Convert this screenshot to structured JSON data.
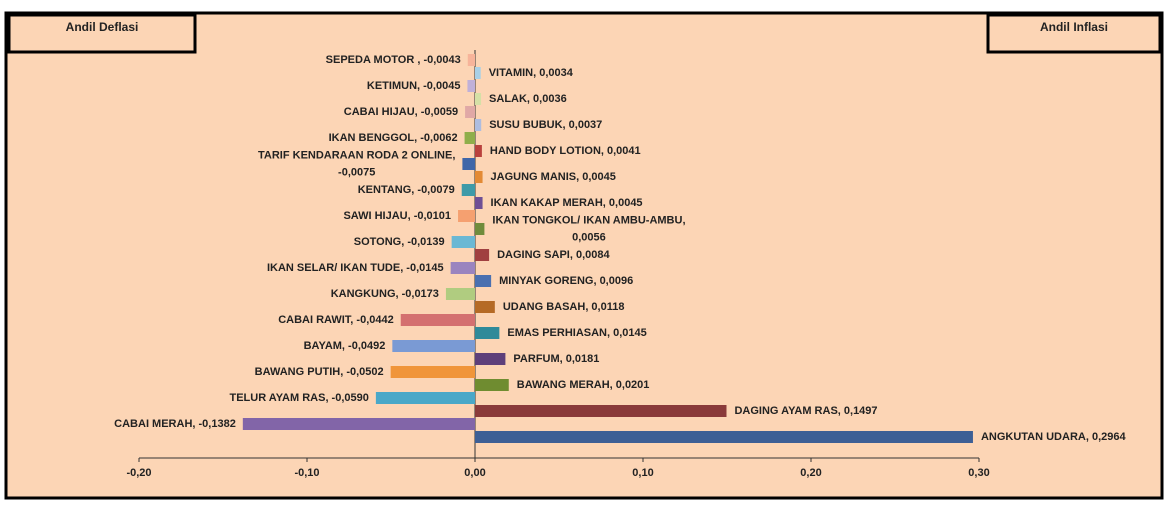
{
  "chart_data": {
    "type": "bar",
    "orientation": "horizontal",
    "annotations": [
      "Andil Deflasi",
      "Andil Inflasi"
    ],
    "value_labels": [
      "SEPEDA MOTOR , -0,0043",
      "VITAMIN, 0,0034",
      "KETIMUN, -0,0045",
      "SALAK, 0,0036",
      "CABAI HIJAU, -0,0059",
      "SUSU BUBUK, 0,0037",
      "IKAN BENGGOL, -0,0062",
      "HAND BODY LOTION, 0,0041",
      [
        "TARIF KENDARAAN RODA 2 ONLINE,",
        "-0,0075"
      ],
      "JAGUNG MANIS, 0,0045",
      "KENTANG, -0,0079",
      "IKAN KAKAP MERAH, 0,0045",
      "SAWI HIJAU, -0,0101",
      [
        "IKAN TONGKOL/ IKAN AMBU-AMBU,",
        "0,0056"
      ],
      "SOTONG, -0,0139",
      "DAGING SAPI, 0,0084",
      "IKAN SELAR/ IKAN TUDE, -0,0145",
      "MINYAK GORENG, 0,0096",
      "KANGKUNG, -0,0173",
      "UDANG BASAH, 0,0118",
      "CABAI RAWIT, -0,0442",
      "EMAS PERHIASAN, 0,0145",
      "BAYAM, -0,0492",
      "PARFUM, 0,0181",
      "BAWANG PUTIH, -0,0502",
      "BAWANG MERAH, 0,0201",
      "TELUR AYAM RAS, -0,0590",
      "DAGING AYAM RAS, 0,1497",
      "CABAI MERAH, -0,1382",
      "ANGKUTAN UDARA, 0,2964"
    ],
    "values": [
      -0.0043,
      0.0034,
      -0.0045,
      0.0036,
      -0.0059,
      0.0037,
      -0.0062,
      0.0041,
      -0.0075,
      0.0045,
      -0.0079,
      0.0045,
      -0.0101,
      0.0056,
      -0.0139,
      0.0084,
      -0.0145,
      0.0096,
      -0.0173,
      0.0118,
      -0.0442,
      0.0145,
      -0.0492,
      0.0181,
      -0.0502,
      0.0201,
      -0.059,
      0.1497,
      -0.1382,
      0.2964
    ],
    "colors": [
      "#f7b49a",
      "#a8d0e6",
      "#c0b0d8",
      "#d5e0a6",
      "#e0a8a6",
      "#aebde0",
      "#8fae4a",
      "#b9413d",
      "#3f66a8",
      "#e38a35",
      "#3e9aa8",
      "#6e4f95",
      "#f5a070",
      "#6f8c3c",
      "#6ab8d4",
      "#a04040",
      "#9a84bf",
      "#4a70b0",
      "#b0cc80",
      "#b56a25",
      "#d47070",
      "#2f8a99",
      "#7a9ad4",
      "#5e3f7a",
      "#f0953a",
      "#6f8c30",
      "#4aa8c8",
      "#8a3a3a",
      "#8265a8",
      "#3d5f95"
    ],
    "xlim": [
      -0.2,
      0.3
    ],
    "xticks": [
      {
        "value": -0.2,
        "label": "-0,20"
      },
      {
        "value": -0.1,
        "label": "-0,10"
      },
      {
        "value": 0,
        "label": "0,00"
      },
      {
        "value": 0.1,
        "label": "0,10"
      },
      {
        "value": 0.2,
        "label": "0,20"
      },
      {
        "value": 0.3,
        "label": "0,30"
      }
    ],
    "background": "#fcd5b5"
  }
}
